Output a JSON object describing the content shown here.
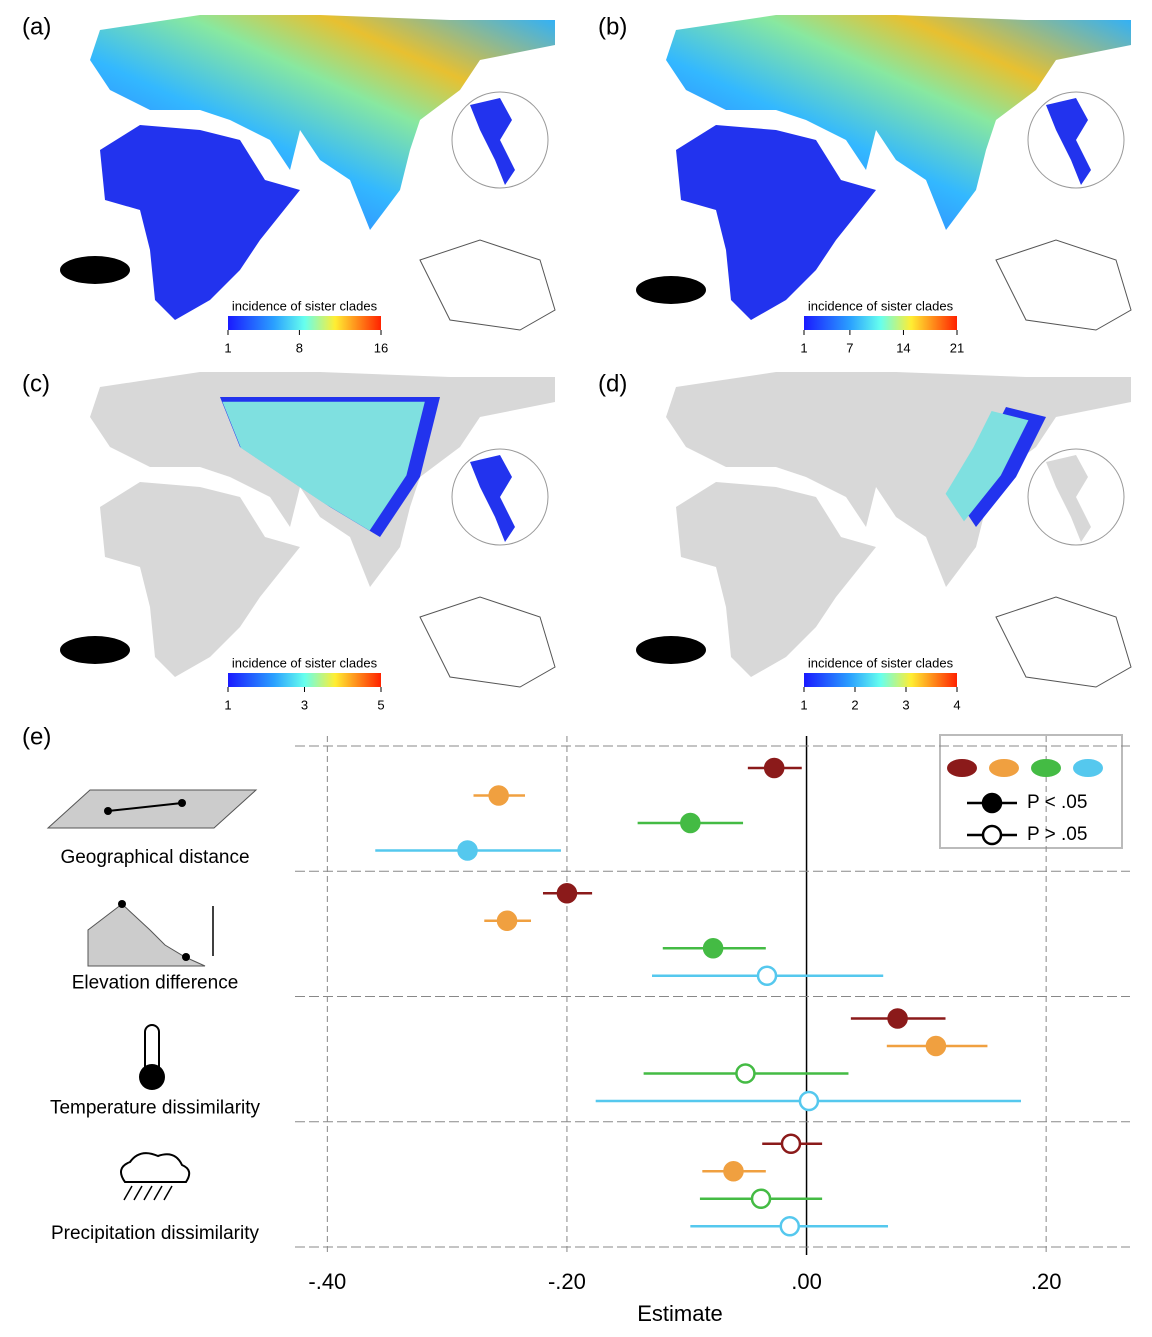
{
  "maps": [
    {
      "label": "(a)",
      "colorbar_label": "incidence of sister clades",
      "colorbar_ticks": [
        1,
        8,
        16
      ]
    },
    {
      "label": "(b)",
      "colorbar_label": "incidence of sister clades",
      "colorbar_ticks": [
        1,
        7,
        14,
        21
      ]
    },
    {
      "label": "(c)",
      "colorbar_label": "incidence of sister clades",
      "colorbar_ticks": [
        1,
        3,
        5
      ]
    },
    {
      "label": "(d)",
      "colorbar_label": "incidence of sister clades",
      "colorbar_ticks": [
        1,
        2,
        3,
        4
      ]
    }
  ],
  "chart_data": {
    "type": "forest",
    "panel_label": "(e)",
    "xlabel": "Estimate",
    "xlim": [
      -0.427,
      0.27
    ],
    "xticks": [
      {
        "value": -0.4,
        "label": "-.40"
      },
      {
        "value": -0.2,
        "label": "-.20"
      },
      {
        "value": 0,
        "label": ".00"
      },
      {
        "value": 0.2,
        "label": ".20"
      }
    ],
    "grid": true,
    "categories": [
      "Geographical distance",
      "Elevation difference",
      "Temperature dissimilarity",
      "Precipitation dissimilarity"
    ],
    "legend": [
      "P < .05",
      "P > .05"
    ],
    "series": [
      {
        "color": "#8b1a1a",
        "values": [
          -0.027,
          -0.2,
          0.076,
          -0.013
        ],
        "low": [
          -0.049,
          -0.22,
          0.037,
          -0.037
        ],
        "high": [
          -0.004,
          -0.179,
          0.116,
          0.013
        ],
        "significant": [
          true,
          true,
          true,
          false
        ]
      },
      {
        "color": "#f0a040",
        "values": [
          -0.257,
          -0.25,
          0.108,
          -0.061
        ],
        "low": [
          -0.278,
          -0.269,
          0.067,
          -0.087
        ],
        "high": [
          -0.235,
          -0.23,
          0.151,
          -0.034
        ],
        "significant": [
          true,
          true,
          true,
          true
        ]
      },
      {
        "color": "#44bb44",
        "values": [
          -0.097,
          -0.078,
          -0.051,
          -0.038
        ],
        "low": [
          -0.141,
          -0.12,
          -0.136,
          -0.089
        ],
        "high": [
          -0.053,
          -0.034,
          0.035,
          0.013
        ],
        "significant": [
          true,
          true,
          false,
          false
        ]
      },
      {
        "color": "#55c8ee",
        "values": [
          -0.283,
          -0.033,
          0.002,
          -0.014
        ],
        "low": [
          -0.36,
          -0.129,
          -0.176,
          -0.097
        ],
        "high": [
          -0.205,
          0.064,
          0.179,
          0.068
        ],
        "significant": [
          true,
          false,
          false,
          false
        ]
      }
    ]
  }
}
